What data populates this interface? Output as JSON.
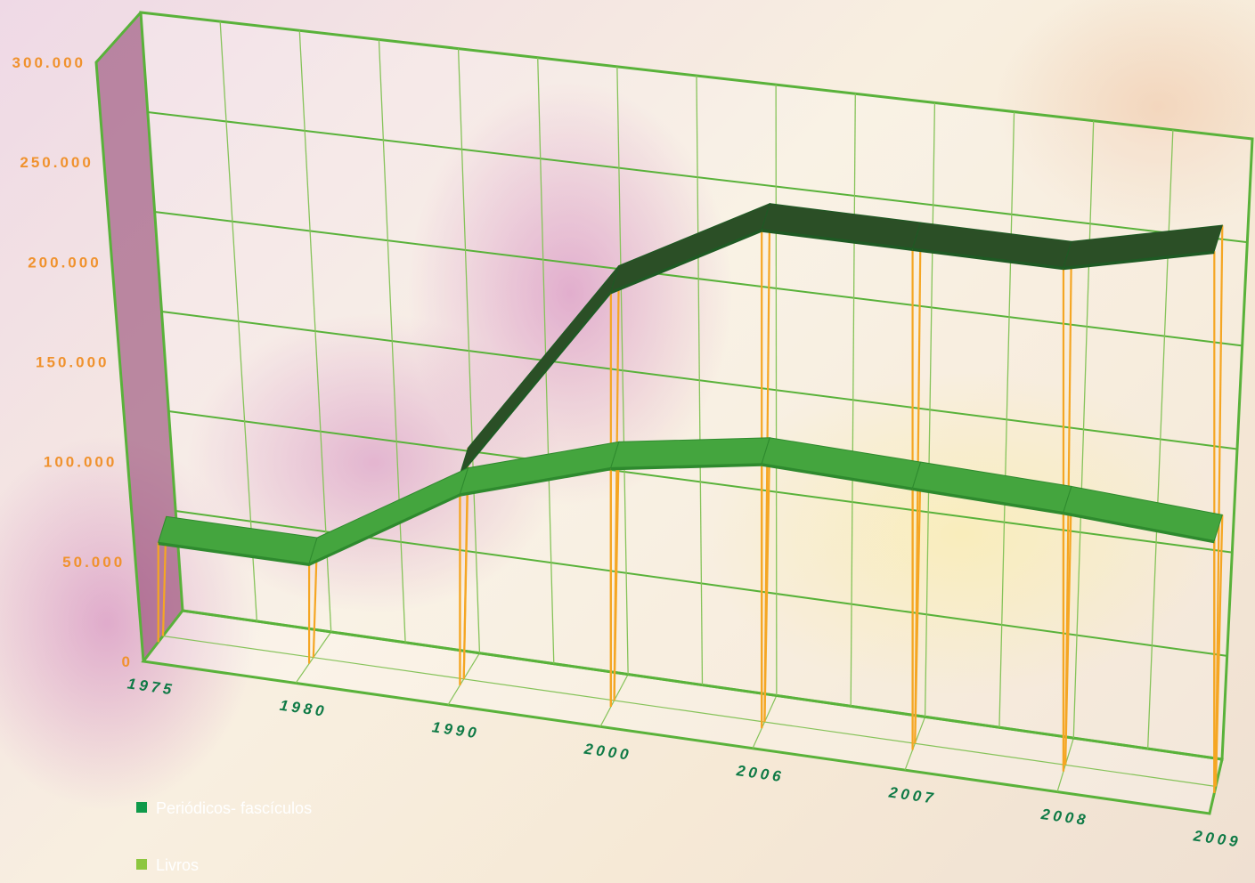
{
  "chart_data": {
    "type": "line",
    "style": "3d-ribbon",
    "categories": [
      "1975",
      "1980",
      "1990",
      "2000",
      "2006",
      "2007",
      "2008",
      "2009"
    ],
    "y_ticks": [
      "0",
      "50.000",
      "100.000",
      "150.000",
      "200.000",
      "250.000",
      "300.000"
    ],
    "ylim": [
      0,
      300000
    ],
    "grid": true,
    "legend_position": "bottom-left",
    "series": [
      {
        "name": "Periódicos- fascículos",
        "color": "#0f9a4a",
        "ribbon_top": "#2b4f26",
        "ribbon_side": "#1e5a24",
        "values": [
          null,
          null,
          105000,
          205000,
          245000,
          245000,
          245000,
          262000
        ]
      },
      {
        "name": "Livros",
        "color": "#8cc63f",
        "ribbon_top": "#44a53e",
        "ribbon_side": "#2e8a2e",
        "values": [
          50000,
          50000,
          95000,
          118000,
          130000,
          128000,
          126000,
          122000
        ]
      }
    ],
    "colors": {
      "frame": "#59b23a",
      "grid": "#86c35a",
      "drop_line": "#f5a623",
      "wall": "#8a3a6a"
    }
  }
}
